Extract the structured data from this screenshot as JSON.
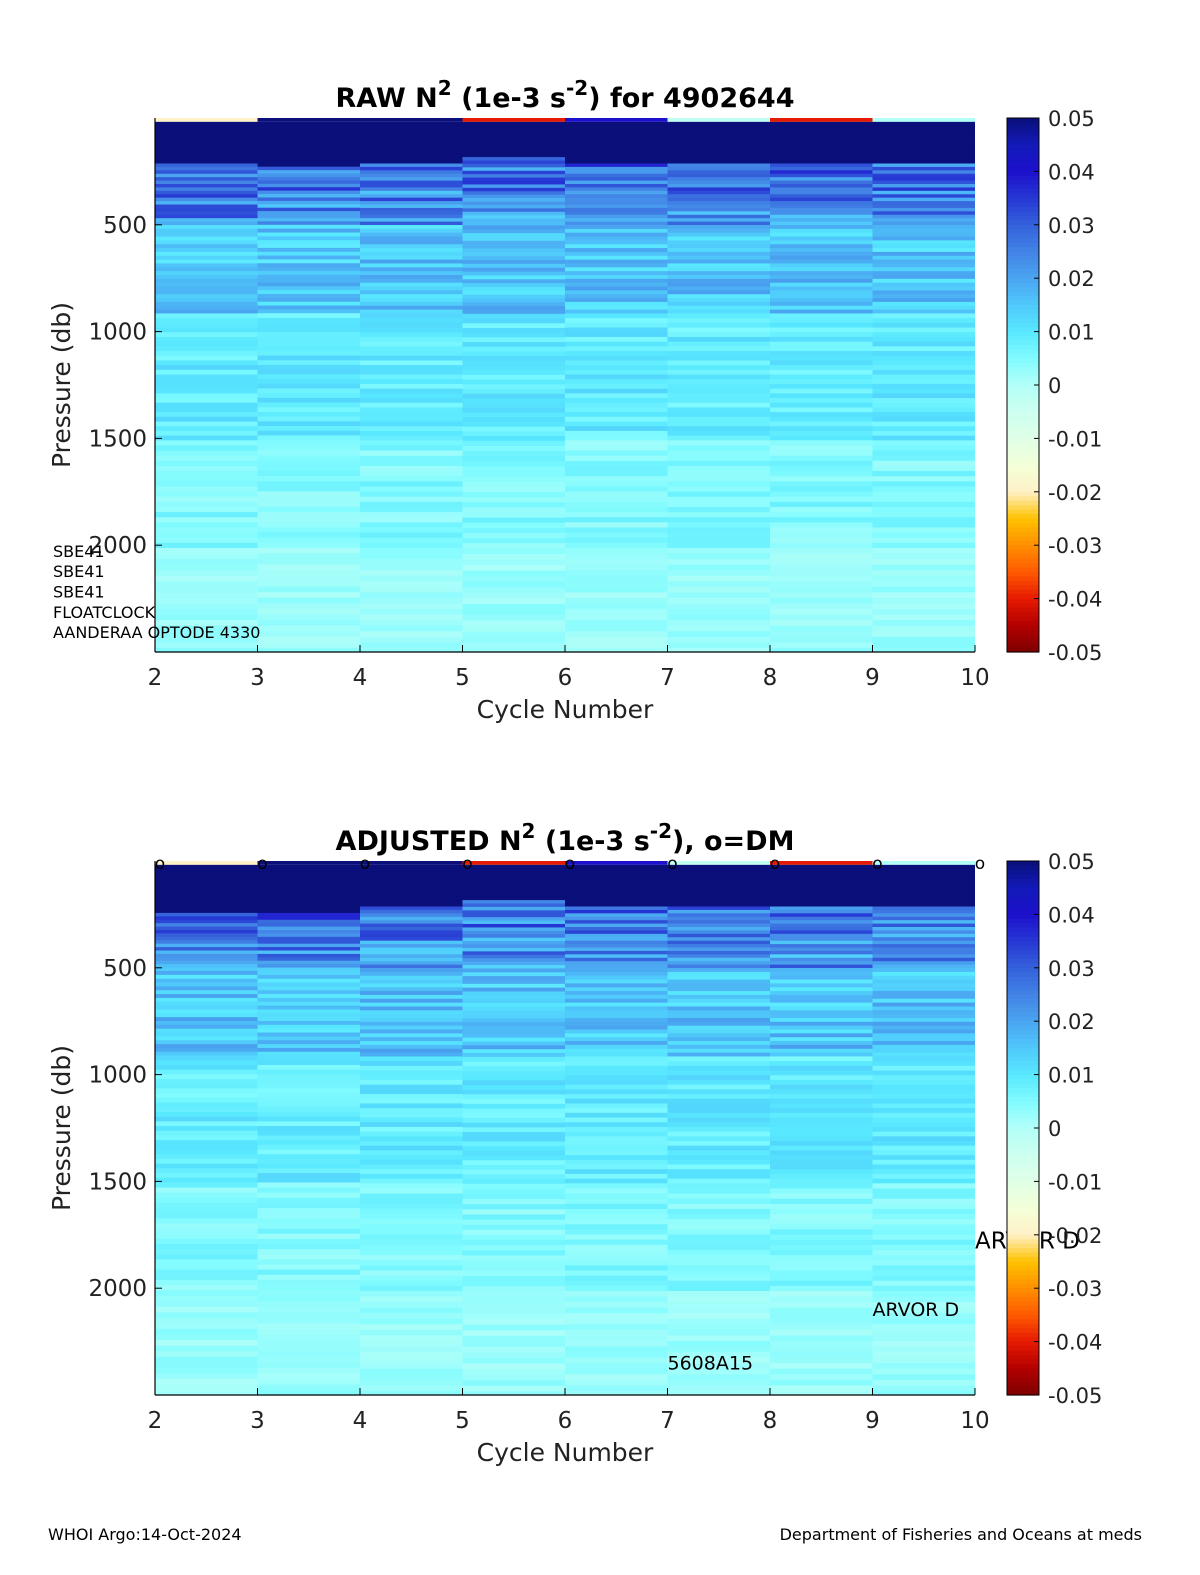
{
  "footer": {
    "left": "WHOI Argo:14-Oct-2024",
    "right": "Department of Fisheries and Oceans at meds"
  },
  "colors": {
    "colormap": [
      "#7f0000",
      "#b30000",
      "#e61a00",
      "#ff5a00",
      "#ff9000",
      "#ffc200",
      "#fff1c8",
      "#f3ffd8",
      "#e0ffe6",
      "#ccfff0",
      "#b2fff8",
      "#80fbff",
      "#58e8ff",
      "#4fc8fb",
      "#4aa4f0",
      "#4283e6",
      "#3460da",
      "#2637d4",
      "#1d10cc",
      "#121ab8",
      "#0a0f7a"
    ]
  },
  "chart_data": [
    {
      "type": "heatmap",
      "title_main": "RAW N",
      "title_sup1": "2",
      "title_mid": " (1e-3 s",
      "title_sup2": "-2",
      "title_end": ") for 4902644",
      "xlabel": "Cycle Number",
      "ylabel": "Pressure (db)",
      "x_ticks": [
        "2",
        "3",
        "4",
        "5",
        "6",
        "7",
        "8",
        "9",
        "10"
      ],
      "y_ticks": [
        "500",
        "1000",
        "1500",
        "2000"
      ],
      "xlim": [
        2,
        10
      ],
      "ylim": [
        2500,
        0
      ],
      "clim": [
        -0.05,
        0.05
      ],
      "colorbar_ticks": [
        "0.05",
        "0.04",
        "0.03",
        "0.02",
        "0.01",
        "0",
        "-0.01",
        "-0.02",
        "-0.03",
        "-0.04",
        "-0.05"
      ],
      "cycles": [
        2,
        3,
        4,
        5,
        6,
        7,
        8,
        9
      ],
      "surface_values": [
        -0.02,
        0.05,
        0.05,
        -0.04,
        0.04,
        -0.003,
        -0.04,
        0.0
      ],
      "mixed_layer_depth": [
        210,
        220,
        200,
        180,
        200,
        210,
        200,
        210
      ],
      "dm_markers": false,
      "annotations": [
        {
          "label": "SBE41",
          "x": 1.0,
          "y": 2055
        },
        {
          "label": "SBE41",
          "x": 1.0,
          "y": 2150
        },
        {
          "label": "SBE41",
          "x": 1.0,
          "y": 2245
        },
        {
          "label": "FLOATCLOCK",
          "x": 1.0,
          "y": 2340
        },
        {
          "label": "AANDERAA OPTODE 4330",
          "x": 1.0,
          "y": 2435
        }
      ]
    },
    {
      "type": "heatmap",
      "title_main": "ADJUSTED N",
      "title_sup1": "2",
      "title_mid": " (1e-3 s",
      "title_sup2": "-2",
      "title_end": "), o=DM",
      "xlabel": "Cycle Number",
      "ylabel": "Pressure (db)",
      "x_ticks": [
        "2",
        "3",
        "4",
        "5",
        "6",
        "7",
        "8",
        "9",
        "10"
      ],
      "y_ticks": [
        "500",
        "1000",
        "1500",
        "2000"
      ],
      "xlim": [
        2,
        10
      ],
      "ylim": [
        2500,
        0
      ],
      "clim": [
        -0.05,
        0.05
      ],
      "colorbar_ticks": [
        "0.05",
        "0.04",
        "0.03",
        "0.02",
        "0.01",
        "0",
        "-0.01",
        "-0.02",
        "-0.03",
        "-0.04",
        "-0.05"
      ],
      "cycles": [
        2,
        3,
        4,
        5,
        6,
        7,
        8,
        9
      ],
      "surface_values": [
        -0.02,
        0.05,
        0.05,
        -0.04,
        0.04,
        -0.003,
        -0.04,
        0.0
      ],
      "mixed_layer_depth": [
        230,
        240,
        200,
        180,
        200,
        210,
        200,
        210
      ],
      "dm_markers": true,
      "dm_marker_x": [
        2,
        3,
        4,
        5,
        6,
        7,
        8,
        9,
        10
      ],
      "dm_marker_label": "o",
      "annotations": [
        {
          "label": "ARVOR D",
          "x": 10.0,
          "y": 1815
        },
        {
          "label": "ARVOR D",
          "x": 9.0,
          "y": 2130
        },
        {
          "label": "5608A15",
          "x": 7.0,
          "y": 2380
        }
      ]
    }
  ]
}
